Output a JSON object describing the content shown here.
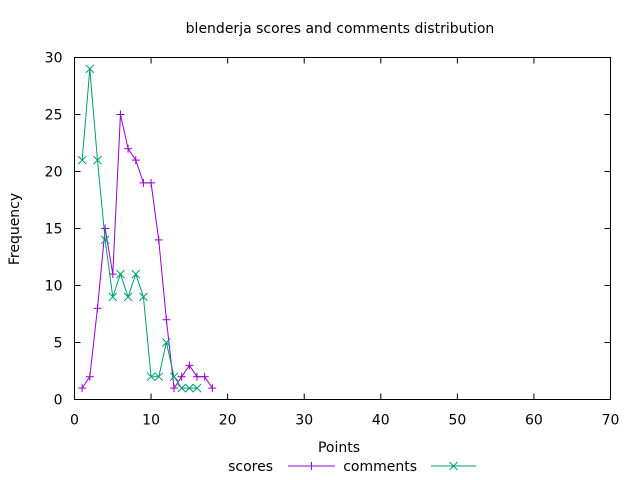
{
  "chart_data": {
    "type": "line",
    "title": "blenderja scores and comments distribution",
    "xlabel": "Points",
    "ylabel": "Frequency",
    "xlim": [
      0,
      70
    ],
    "ylim": [
      0,
      30
    ],
    "xticks": [
      0,
      10,
      20,
      30,
      40,
      50,
      60,
      70
    ],
    "yticks": [
      0,
      5,
      10,
      15,
      20,
      25,
      30
    ],
    "grid": false,
    "legend_position": "bottom",
    "series": [
      {
        "name": "scores",
        "color": "#9400d3",
        "marker": "plus",
        "x": [
          1,
          2,
          3,
          4,
          5,
          6,
          7,
          8,
          9,
          10,
          11,
          12,
          13,
          14,
          15,
          16,
          17,
          18
        ],
        "y": [
          1,
          2,
          8,
          15,
          11,
          25,
          22,
          21,
          19,
          19,
          14,
          7,
          1,
          2,
          3,
          2,
          2,
          1
        ]
      },
      {
        "name": "comments",
        "color": "#009e73",
        "marker": "cross",
        "x": [
          1,
          2,
          3,
          4,
          5,
          6,
          7,
          8,
          9,
          10,
          11,
          12,
          13,
          14,
          15,
          16
        ],
        "y": [
          21,
          29,
          21,
          14,
          9,
          11,
          9,
          11,
          9,
          2,
          2,
          5,
          2,
          1,
          1,
          1
        ]
      }
    ]
  }
}
